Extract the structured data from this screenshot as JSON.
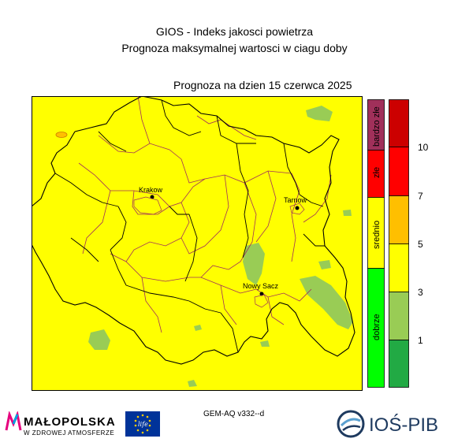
{
  "header": {
    "title_line1": "GIOS - Indeks jakosci powietrza",
    "title_line2": "Prognoza maksymalnej wartosci w ciagu doby",
    "forecast_date": "Prognoza na dzien  15 czerwca 2025"
  },
  "cities": [
    {
      "name": "Krakow"
    },
    {
      "name": "Tarnow"
    },
    {
      "name": "Nowy Sacz"
    }
  ],
  "legend": {
    "categories": [
      {
        "label": "bardzo złe",
        "color": "#a0305a"
      },
      {
        "label": "złe",
        "color": "#ff0000"
      },
      {
        "label": "srednio",
        "color": "#ffff00"
      },
      {
        "label": "dobrze",
        "color": "#00ff00"
      }
    ],
    "value_bins": [
      {
        "color": "#cc0000"
      },
      {
        "color": "#ff0000"
      },
      {
        "color": "#ffbf00"
      },
      {
        "color": "#ffff00"
      },
      {
        "color": "#99cc55"
      },
      {
        "color": "#22aa44"
      }
    ],
    "ticks": [
      "10",
      "7",
      "5",
      "3",
      "1"
    ]
  },
  "colors": {
    "map_fill": "#ffff00",
    "good_patch": "#99cc55",
    "warn_patch": "#ffbf00"
  },
  "footer": {
    "model": "GEM-AQ v332--d",
    "malopolska_name": "MAŁOPOLSKA",
    "malopolska_sub": "W ZDROWEJ ATMOSFERZE",
    "ios_name": "IOŚ-PIB",
    "eu_life": "life"
  }
}
